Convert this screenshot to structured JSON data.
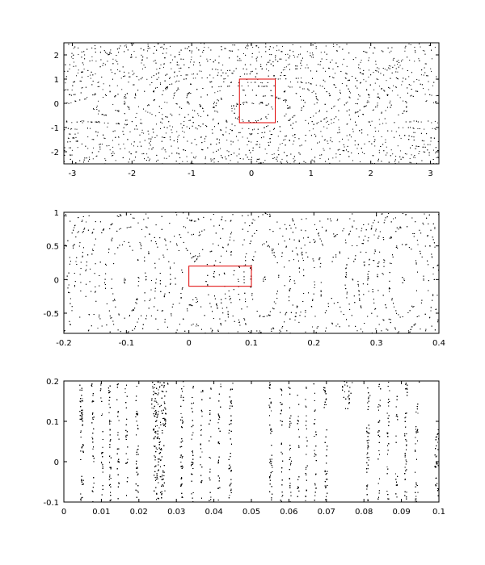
{
  "chart_data": [
    {
      "type": "scatter",
      "title": "",
      "xlabel": "",
      "ylabel": "",
      "xlim": [
        -3.1416,
        3.1416
      ],
      "ylim": [
        -2.5,
        2.5
      ],
      "xticks": [
        -3,
        -2,
        -1,
        0,
        1,
        2,
        3
      ],
      "xtick_labels": [
        "-3",
        "-2",
        "-1",
        "0",
        "1",
        "2",
        "3"
      ],
      "yticks": [
        -2,
        -1,
        0,
        1,
        2
      ],
      "ytick_labels": [
        "-2",
        "-1",
        "0",
        "1",
        "2"
      ],
      "grid": false,
      "legend": "none",
      "point_color": "#000000",
      "highlight_box": {
        "x": [
          -0.2,
          0.4
        ],
        "y": [
          -0.8,
          1.0
        ],
        "color": "#e00000"
      }
    },
    {
      "type": "scatter",
      "title": "",
      "xlabel": "",
      "ylabel": "",
      "xlim": [
        -0.2,
        0.4
      ],
      "ylim": [
        -0.8,
        1.0
      ],
      "xticks": [
        -0.2,
        -0.1,
        0,
        0.1,
        0.2,
        0.3,
        0.4
      ],
      "xtick_labels": [
        "-0.2",
        "-0.1",
        "0",
        "0.1",
        "0.2",
        "0.3",
        "0.4"
      ],
      "yticks": [
        -0.5,
        0,
        0.5,
        1
      ],
      "ytick_labels": [
        "-0.5",
        "0",
        "0.5",
        "1"
      ],
      "grid": false,
      "legend": "none",
      "point_color": "#000000",
      "highlight_box": {
        "x": [
          0,
          0.1
        ],
        "y": [
          -0.1,
          0.2
        ],
        "color": "#e00000"
      }
    },
    {
      "type": "scatter",
      "title": "",
      "xlabel": "",
      "ylabel": "",
      "xlim": [
        0,
        0.1
      ],
      "ylim": [
        -0.1,
        0.2
      ],
      "xticks": [
        0,
        0.01,
        0.02,
        0.03,
        0.04,
        0.05,
        0.06,
        0.07,
        0.08,
        0.09,
        0.1
      ],
      "xtick_labels": [
        "0",
        "0.01",
        "0.02",
        "0.03",
        "0.04",
        "0.05",
        "0.06",
        "0.07",
        "0.08",
        "0.09",
        "0.1"
      ],
      "yticks": [
        -0.1,
        0,
        0.1,
        0.2
      ],
      "ytick_labels": [
        "-0.1",
        "0",
        "0.1",
        "0.2"
      ],
      "grid": false,
      "legend": "none",
      "point_color": "#000000",
      "highlight_box": null
    }
  ]
}
